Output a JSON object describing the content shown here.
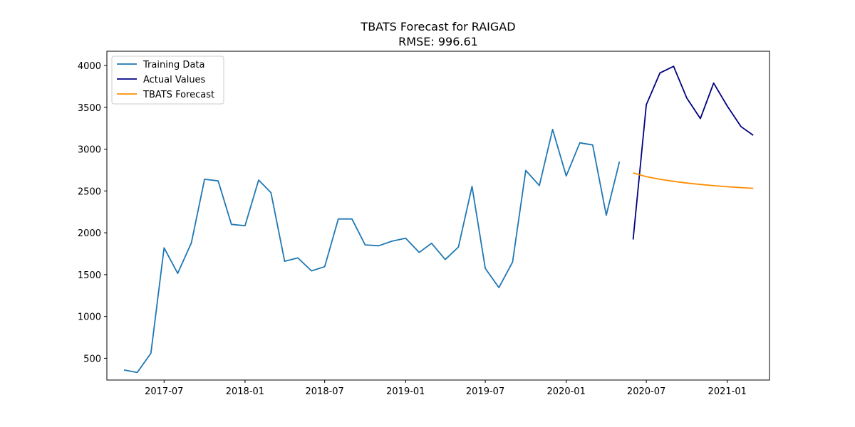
{
  "chart_data": {
    "type": "line",
    "title": "TBATS Forecast for RAIGAD",
    "subtitle": "RMSE: 996.61",
    "xlabel": "",
    "ylabel": "",
    "ylim": [
      240,
      4170
    ],
    "xlim": [
      "2017-02-21",
      "2021-04-07"
    ],
    "grid": false,
    "legend_position": "top-left",
    "x_ticks": [
      "2017-07",
      "2018-01",
      "2018-07",
      "2019-01",
      "2019-07",
      "2020-01",
      "2020-07",
      "2021-01"
    ],
    "y_ticks": [
      500,
      1000,
      1500,
      2000,
      2500,
      3000,
      3500,
      4000
    ],
    "series": [
      {
        "name": "Training Data",
        "color": "#1f77b4",
        "x": [
          "2017-04-01",
          "2017-05-01",
          "2017-06-01",
          "2017-07-01",
          "2017-08-01",
          "2017-09-01",
          "2017-10-01",
          "2017-11-01",
          "2017-12-01",
          "2018-01-01",
          "2018-02-01",
          "2018-03-01",
          "2018-04-01",
          "2018-05-01",
          "2018-06-01",
          "2018-07-01",
          "2018-08-01",
          "2018-09-01",
          "2018-10-01",
          "2018-11-01",
          "2018-12-01",
          "2019-01-01",
          "2019-02-01",
          "2019-03-01",
          "2019-04-01",
          "2019-05-01",
          "2019-06-01",
          "2019-07-01",
          "2019-08-01",
          "2019-09-01",
          "2019-10-01",
          "2019-11-01",
          "2019-12-01",
          "2020-01-01",
          "2020-02-01",
          "2020-03-01",
          "2020-04-01",
          "2020-05-01"
        ],
        "values": [
          360,
          330,
          560,
          1820,
          1515,
          1880,
          2640,
          2620,
          2100,
          2085,
          2630,
          2480,
          1660,
          1700,
          1545,
          1595,
          2165,
          2165,
          1855,
          1845,
          1900,
          1935,
          1765,
          1875,
          1680,
          1830,
          2555,
          1575,
          1345,
          1650,
          2745,
          2565,
          3235,
          2680,
          3075,
          3050,
          2210,
          2850
        ]
      },
      {
        "name": "Actual Values",
        "color": "#000080",
        "x": [
          "2020-06-01",
          "2020-07-01",
          "2020-08-01",
          "2020-09-01",
          "2020-10-01",
          "2020-11-01",
          "2020-12-01",
          "2021-01-01",
          "2021-02-01",
          "2021-03-01"
        ],
        "values": [
          1920,
          3530,
          3910,
          3990,
          3610,
          3365,
          3790,
          3515,
          3270,
          3165
        ]
      },
      {
        "name": "TBATS Forecast",
        "color": "#ff8c00",
        "x": [
          "2020-06-01",
          "2020-07-01",
          "2020-08-01",
          "2020-09-01",
          "2020-10-01",
          "2020-11-01",
          "2020-12-01",
          "2021-01-01",
          "2021-02-01",
          "2021-03-01"
        ],
        "values": [
          2715,
          2670,
          2640,
          2615,
          2595,
          2578,
          2563,
          2550,
          2540,
          2532
        ]
      }
    ]
  }
}
